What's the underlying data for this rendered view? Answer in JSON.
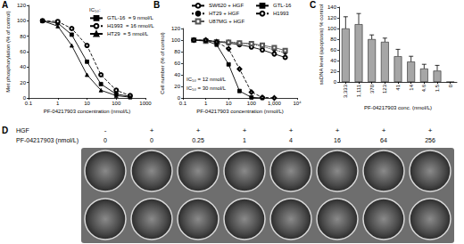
{
  "chart_data": [
    {
      "type": "line",
      "title": "A",
      "log": "x",
      "grid": false,
      "legend": "upper right",
      "xlabel": "PF-04217903 concentration (nmol/L)",
      "ylabel": "Met phosphorylation (% of control)",
      "xlim": [
        0.1,
        1000
      ],
      "xticks": [
        0.1,
        1,
        10,
        100,
        1000
      ],
      "ylim": [
        0,
        120
      ],
      "yticks": [
        0,
        20,
        40,
        60,
        80,
        100,
        120
      ],
      "annotations": [
        "IC₅₀:"
      ],
      "series": [
        {
          "name": "GTL-16",
          "note": "= 9 nmol/L",
          "color": "#000000",
          "marker": "square",
          "line_style": "solid",
          "x": [
            0.3,
            1,
            3,
            10,
            30,
            100,
            300
          ],
          "values": [
            100,
            97,
            82,
            47,
            18,
            5,
            2
          ]
        },
        {
          "name": "H1993",
          "note": "= 16 nmol/L",
          "color": "#000000",
          "marker": "open-circle",
          "line_style": "dashed",
          "x": [
            0.3,
            1,
            3,
            10,
            30,
            100,
            300
          ],
          "values": [
            100,
            99,
            90,
            68,
            30,
            10,
            3
          ]
        },
        {
          "name": "HT29",
          "note": "= 5 nmol/L",
          "color": "#000000",
          "marker": "triangle",
          "line_style": "solid",
          "x": [
            0.3,
            1,
            3,
            10,
            30,
            100,
            300
          ],
          "values": [
            100,
            93,
            68,
            30,
            10,
            3,
            1
          ]
        }
      ]
    },
    {
      "type": "line",
      "title": "B",
      "log": "x",
      "grid": false,
      "legend": "top",
      "xlabel": "PF-04217903 concentration (nmol/L)",
      "ylabel": "Cell number (% of control)",
      "xlim": [
        0.1,
        10000
      ],
      "xticks": [
        0.1,
        1,
        10,
        100,
        {
          "value": 1000,
          "label": "1,000"
        },
        {
          "value": 10000,
          "label": "10⁴"
        }
      ],
      "ylim": [
        0,
        120
      ],
      "yticks": [
        0,
        20,
        40,
        60,
        80,
        100,
        120
      ],
      "annotations": [
        "IC₅₀ = 12 nmol/L",
        "IC₅₀ = 30 nmol/L"
      ],
      "series": [
        {
          "name": "SW620 + HGF",
          "color": "#000000",
          "marker": "open-circle",
          "line_style": "solid",
          "x": [
            0.3,
            1,
            3,
            10,
            30,
            100,
            300,
            1000,
            3000
          ],
          "values": [
            100,
            99,
            97,
            95,
            92,
            88,
            83,
            76,
            70
          ]
        },
        {
          "name": "HT29 + HGF",
          "color": "#000000",
          "marker": "circle",
          "line_style": "dotted",
          "x": [
            0.3,
            1,
            3,
            10,
            30,
            100,
            300,
            1000,
            3000
          ],
          "values": [
            100,
            100,
            98,
            97,
            95,
            93,
            89,
            83,
            78
          ]
        },
        {
          "name": "U87MG + HGF",
          "color": "#555555",
          "marker": "open-square",
          "line_style": "solid",
          "x": [
            0.3,
            1,
            3,
            10,
            30,
            100,
            300,
            1000,
            3000
          ],
          "values": [
            100,
            98,
            97,
            96,
            95,
            94,
            91,
            87,
            82
          ]
        },
        {
          "name": "GTL-16",
          "color": "#000000",
          "marker": "square",
          "line_style": "solid",
          "x": [
            0.3,
            1,
            3,
            10,
            30,
            100,
            300
          ],
          "values": [
            100,
            99,
            92,
            58,
            12,
            1,
            0
          ]
        },
        {
          "name": "H1993",
          "color": "#000000",
          "marker": "open-diamond",
          "line_style": "dashed",
          "x": [
            0.3,
            1,
            3,
            10,
            30,
            100,
            300,
            1000
          ],
          "values": [
            100,
            100,
            97,
            85,
            50,
            10,
            1,
            0
          ]
        }
      ]
    },
    {
      "type": "bar",
      "title": "C",
      "grid": false,
      "xlabel": "PF-04217903 conc. (nmol/L)",
      "ylabel": "ssDNA level (apoptosis) % control",
      "categories": [
        "3,333",
        "1,111",
        "370",
        "123",
        "41",
        "14",
        "4.6",
        "1.5",
        "0"
      ],
      "values": [
        100,
        108,
        80,
        75,
        48,
        38,
        25,
        21,
        0
      ],
      "errors": [
        22,
        20,
        8,
        7,
        13,
        10,
        8,
        10,
        0
      ],
      "color": "#a6a6a6",
      "ylim": [
        0,
        140
      ],
      "yticks": [
        0,
        20,
        40,
        60,
        80,
        100,
        120,
        140
      ]
    }
  ],
  "plate": {
    "title": "D",
    "rows": [
      {
        "label": "HGF",
        "values": [
          "-",
          "+",
          "+",
          "+",
          "+",
          "+",
          "+",
          "+"
        ]
      },
      {
        "label": "PF-04217903 (nmol/L)",
        "values": [
          "0",
          "0",
          "0.25",
          "1",
          "4",
          "16",
          "64",
          "256"
        ]
      }
    ]
  }
}
